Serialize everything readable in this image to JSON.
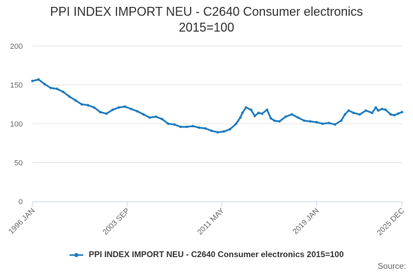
{
  "title_line1": "PPI INDEX IMPORT NEU - C2640 Consumer electronics",
  "title_line2": "2015=100",
  "source_label": "Source:",
  "colors": {
    "series": "#1f7bc0",
    "grid": "#e6e6e6",
    "axis": "#ccd6eb"
  },
  "chart_data": {
    "type": "line",
    "title": "PPI INDEX IMPORT NEU - C2640 Consumer electronics 2015=100",
    "xlabel": "",
    "ylabel": "",
    "ylim": [
      0,
      200
    ],
    "yticks": [
      0,
      50,
      100,
      150,
      200
    ],
    "xlim": [
      1996.0,
      2025.92
    ],
    "xticks": [
      {
        "t": 1996.0,
        "label": "1996 JAN"
      },
      {
        "t": 2003.67,
        "label": "2003 SEP"
      },
      {
        "t": 2011.33,
        "label": "2011 MAY"
      },
      {
        "t": 2019.0,
        "label": "2019 JAN"
      },
      {
        "t": 2025.92,
        "label": "2025 DEC"
      }
    ],
    "legend": "bottom-center",
    "series": [
      {
        "name": "PPI INDEX IMPORT NEU - C2640 Consumer electronics 2015=100",
        "points": [
          [
            1996.0,
            155
          ],
          [
            1996.5,
            157
          ],
          [
            1997.0,
            151
          ],
          [
            1997.5,
            146
          ],
          [
            1998.0,
            145
          ],
          [
            1998.5,
            141
          ],
          [
            1999.0,
            135
          ],
          [
            1999.5,
            130
          ],
          [
            2000.0,
            125
          ],
          [
            2000.5,
            124
          ],
          [
            2001.0,
            121
          ],
          [
            2001.5,
            115
          ],
          [
            2002.0,
            113
          ],
          [
            2002.5,
            118
          ],
          [
            2003.0,
            121
          ],
          [
            2003.5,
            122
          ],
          [
            2004.0,
            119
          ],
          [
            2004.5,
            116
          ],
          [
            2005.0,
            112
          ],
          [
            2005.5,
            108
          ],
          [
            2006.0,
            109
          ],
          [
            2006.5,
            106
          ],
          [
            2007.0,
            100
          ],
          [
            2007.5,
            99
          ],
          [
            2008.0,
            96
          ],
          [
            2008.5,
            96
          ],
          [
            2009.0,
            97
          ],
          [
            2009.5,
            95
          ],
          [
            2010.0,
            94
          ],
          [
            2010.5,
            91
          ],
          [
            2011.0,
            89
          ],
          [
            2011.5,
            90
          ],
          [
            2012.0,
            93
          ],
          [
            2012.5,
            100
          ],
          [
            2012.83,
            108
          ],
          [
            2013.0,
            114
          ],
          [
            2013.3,
            121
          ],
          [
            2013.7,
            118
          ],
          [
            2014.0,
            110
          ],
          [
            2014.3,
            114
          ],
          [
            2014.6,
            113
          ],
          [
            2015.0,
            118
          ],
          [
            2015.3,
            107
          ],
          [
            2015.6,
            104
          ],
          [
            2016.0,
            103
          ],
          [
            2016.5,
            109
          ],
          [
            2017.0,
            112
          ],
          [
            2017.5,
            108
          ],
          [
            2018.0,
            104
          ],
          [
            2018.5,
            103
          ],
          [
            2019.0,
            102
          ],
          [
            2019.5,
            100
          ],
          [
            2020.0,
            101
          ],
          [
            2020.5,
            99
          ],
          [
            2021.0,
            104
          ],
          [
            2021.3,
            112
          ],
          [
            2021.6,
            117
          ],
          [
            2022.0,
            114
          ],
          [
            2022.5,
            112
          ],
          [
            2023.0,
            117
          ],
          [
            2023.5,
            114
          ],
          [
            2023.8,
            121
          ],
          [
            2024.0,
            117
          ],
          [
            2024.3,
            119
          ],
          [
            2024.6,
            118
          ],
          [
            2025.0,
            112
          ],
          [
            2025.3,
            111
          ],
          [
            2025.6,
            113
          ],
          [
            2025.92,
            115
          ]
        ]
      }
    ]
  }
}
